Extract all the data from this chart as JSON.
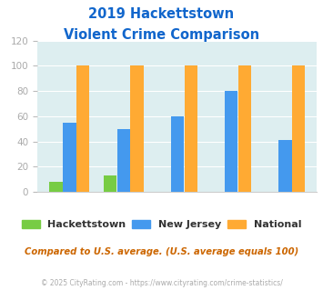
{
  "title_line1": "2019 Hackettstown",
  "title_line2": "Violent Crime Comparison",
  "hackettstown": [
    8,
    13,
    0,
    0,
    0
  ],
  "new_jersey": [
    55,
    50,
    60,
    80,
    41
  ],
  "national": [
    100,
    100,
    100,
    100,
    100
  ],
  "color_hackettstown": "#77cc44",
  "color_nj": "#4499ee",
  "color_national": "#ffaa33",
  "ylim": [
    0,
    120
  ],
  "yticks": [
    0,
    20,
    40,
    60,
    80,
    100,
    120
  ],
  "background_color": "#ddeef0",
  "footnote": "Compared to U.S. average. (U.S. average equals 100)",
  "copyright": "© 2025 CityRating.com - https://www.cityrating.com/crime-statistics/",
  "title_color": "#1166cc",
  "footnote_color": "#cc6600",
  "copyright_color": "#aaaaaa",
  "label_color": "#aaaaaa",
  "ytick_color": "#aaaaaa",
  "bar_width": 0.24
}
